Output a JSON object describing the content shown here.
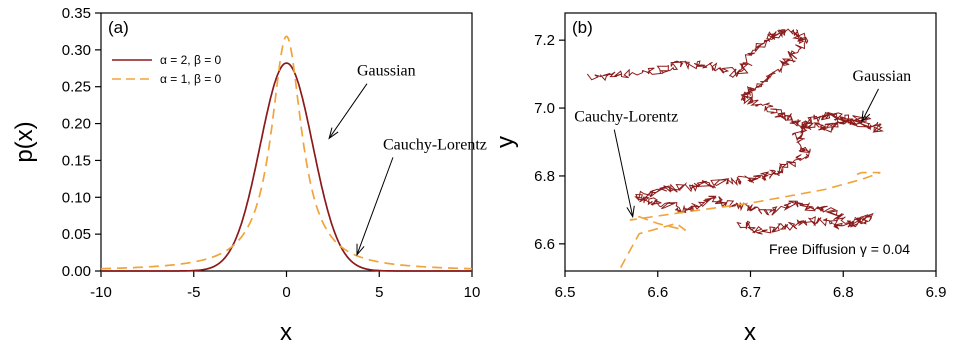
{
  "colors": {
    "gaussian": "#8B1A1A",
    "cauchy": "#F2A33A",
    "axis": "#000000"
  },
  "chart_data": [
    {
      "panel": "(a)",
      "type": "line",
      "xlabel": "x",
      "ylabel": "p(x)",
      "xlim": [
        -10,
        10
      ],
      "ylim": [
        0,
        0.35
      ],
      "xticks": [
        "-10",
        "-5",
        "0",
        "5",
        "10"
      ],
      "yticks": [
        "0.00",
        "0.05",
        "0.10",
        "0.15",
        "0.20",
        "0.25",
        "0.30",
        "0.35"
      ],
      "legend": [
        {
          "label": "α = 2, β = 0",
          "style": "solid",
          "color": "#8B1A1A"
        },
        {
          "label": "α = 1, β = 0",
          "style": "dashed",
          "color": "#F2A33A"
        }
      ],
      "legend_position": "top-left",
      "series": [
        {
          "x": [
            -10,
            -9,
            -8,
            -7,
            -6,
            -5,
            -4,
            -3.5,
            -3,
            -2.5,
            -2,
            -1.5,
            -1,
            -0.5,
            0,
            0.5,
            1,
            1.5,
            2,
            2.5,
            3,
            3.5,
            4,
            5,
            6,
            7,
            8,
            9,
            10
          ],
          "values": [
            0,
            0,
            0,
            0,
            0,
            0.0003,
            0.0052,
            0.0128,
            0.0297,
            0.0567,
            0.1038,
            0.1599,
            0.2197,
            0.2651,
            0.2821,
            0.2651,
            0.2197,
            0.1599,
            0.1038,
            0.0567,
            0.0297,
            0.0128,
            0.0052,
            0.0003,
            0,
            0,
            0,
            0,
            0
          ]
        },
        {
          "x": [
            -10,
            -9,
            -8,
            -7,
            -6,
            -5,
            -4,
            -3.5,
            -3,
            -2.5,
            -2,
            -1.5,
            -1,
            -0.5,
            0,
            0.5,
            1,
            1.5,
            2,
            2.5,
            3,
            3.5,
            4,
            5,
            6,
            7,
            8,
            9,
            10
          ],
          "values": [
            0.0032,
            0.0039,
            0.0049,
            0.0064,
            0.0087,
            0.0124,
            0.0192,
            0.0249,
            0.0333,
            0.0464,
            0.0672,
            0.1005,
            0.1496,
            0.2282,
            0.3183,
            0.2282,
            0.1496,
            0.1005,
            0.0672,
            0.0464,
            0.0333,
            0.0249,
            0.0192,
            0.0124,
            0.0087,
            0.0064,
            0.0049,
            0.0039,
            0.0032
          ]
        }
      ],
      "annotations": [
        {
          "text": "Gaussian",
          "x": 3.8,
          "y": 0.265,
          "target_x": 2.3,
          "target_y": 0.18
        },
        {
          "text": "Cauchy-Lorentz",
          "x": 5.2,
          "y": 0.165,
          "target_x": 3.8,
          "target_y": 0.022
        }
      ]
    },
    {
      "panel": "(b)",
      "type": "line",
      "xlabel": "x",
      "ylabel": "y",
      "xlim": [
        6.5,
        6.9
      ],
      "ylim": [
        6.52,
        7.28
      ],
      "xticks": [
        "6.5",
        "6.6",
        "6.7",
        "6.8",
        "6.9"
      ],
      "yticks": [
        "6.6",
        "6.8",
        "7.0",
        "7.2"
      ],
      "series": [
        {
          "name": "Gaussian",
          "x": [
            6.53,
            6.56,
            6.6,
            6.63,
            6.66,
            6.69,
            6.7,
            6.72,
            6.74,
            6.76,
            6.74,
            6.72,
            6.7,
            6.69,
            6.72,
            6.74,
            6.76,
            6.78,
            6.8,
            6.82,
            6.84,
            6.81,
            6.79,
            6.77,
            6.75,
            6.76,
            6.74,
            6.72,
            6.7,
            6.67,
            6.64,
            6.61,
            6.58,
            6.6,
            6.63,
            6.66,
            6.69,
            6.72,
            6.75,
            6.78,
            6.81,
            6.83,
            6.8,
            6.77,
            6.74,
            6.71,
            6.69
          ],
          "values": [
            7.09,
            7.1,
            7.11,
            7.13,
            7.12,
            7.1,
            7.16,
            7.21,
            7.23,
            7.2,
            7.14,
            7.09,
            7.05,
            7.03,
            7.0,
            6.97,
            6.95,
            6.94,
            6.96,
            6.97,
            6.94,
            6.96,
            6.98,
            6.97,
            6.92,
            6.87,
            6.83,
            6.8,
            6.79,
            6.78,
            6.77,
            6.76,
            6.74,
            6.72,
            6.7,
            6.73,
            6.71,
            6.69,
            6.72,
            6.7,
            6.66,
            6.68,
            6.65,
            6.67,
            6.65,
            6.64,
            6.66
          ]
        },
        {
          "name": "Cauchy-Lorentz",
          "x": [
            6.56,
            6.57,
            6.58,
            6.62,
            6.63,
            6.6,
            6.58,
            6.57,
            6.62,
            6.7,
            6.78,
            6.82,
            6.84,
            6.82,
            6.81
          ],
          "values": [
            6.53,
            6.58,
            6.63,
            6.66,
            6.64,
            6.66,
            6.68,
            6.67,
            6.69,
            6.72,
            6.76,
            6.79,
            6.81,
            6.81,
            6.8
          ]
        }
      ],
      "annotations": [
        {
          "text": "Gaussian",
          "x": 6.81,
          "y": 7.08,
          "target_x": 6.82,
          "target_y": 6.96
        },
        {
          "text": "Cauchy-Lorentz",
          "x": 6.51,
          "y": 6.96,
          "target_x": 6.573,
          "target_y": 6.68
        },
        {
          "text": "Free Diffusion γ = 0.04",
          "x": 6.72,
          "y": 6.57
        }
      ]
    }
  ]
}
